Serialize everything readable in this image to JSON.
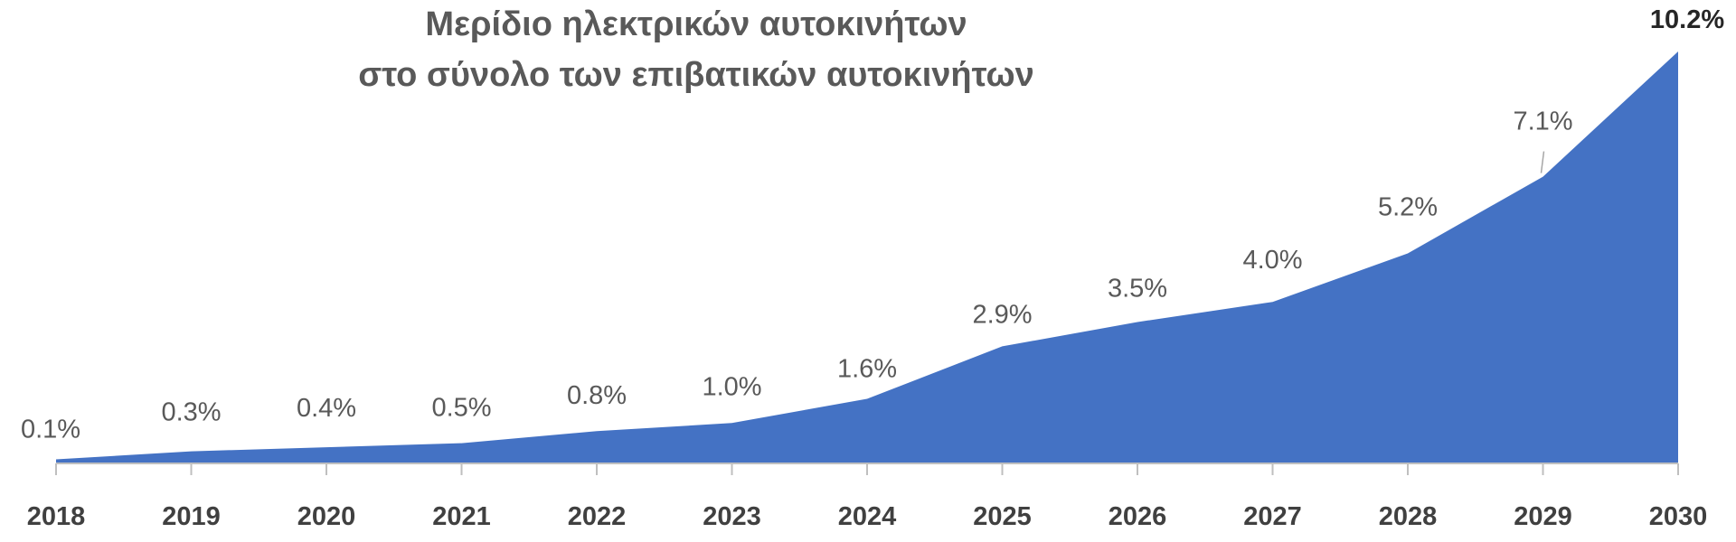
{
  "chart_data": {
    "type": "area",
    "title_line1": "Μερίδιο ηλεκτρικών αυτοκινήτων",
    "title_line2": "στο σύνολο των επιβατικών αυτοκινήτων",
    "categories": [
      "2018",
      "2019",
      "2020",
      "2021",
      "2022",
      "2023",
      "2024",
      "2025",
      "2026",
      "2027",
      "2028",
      "2029",
      "2030"
    ],
    "values": [
      0.1,
      0.3,
      0.4,
      0.5,
      0.8,
      1.0,
      1.6,
      2.9,
      3.5,
      4.0,
      5.2,
      7.1,
      10.2
    ],
    "data_labels": [
      "0.1%",
      "0.3%",
      "0.4%",
      "0.5%",
      "0.8%",
      "1.0%",
      "1.6%",
      "2.9%",
      "3.5%",
      "4.0%",
      "5.2%",
      "7.1%",
      "10.2%"
    ],
    "xlabel": "",
    "ylabel": "",
    "ylim": [
      0,
      10.2
    ],
    "grid": false,
    "legend": "none",
    "fill_color": "#4472C4",
    "axis_color": "#BFBFBF",
    "text_color": "#595959"
  }
}
